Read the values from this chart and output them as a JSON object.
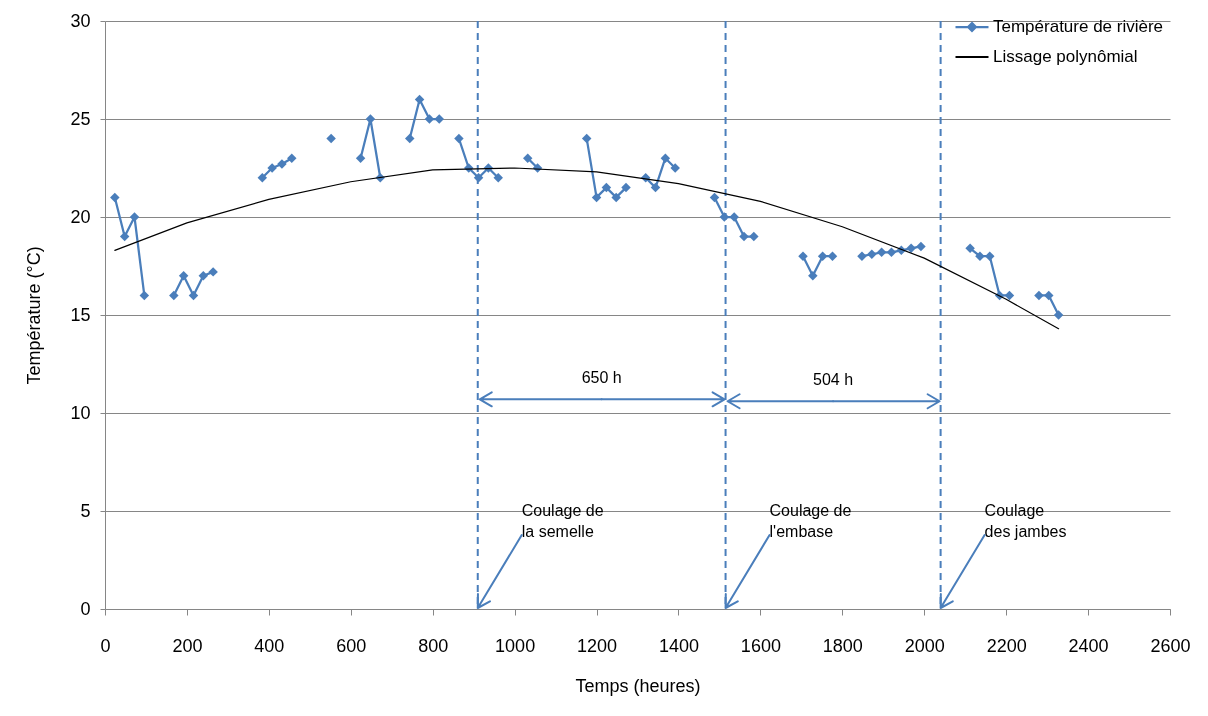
{
  "chart_data": {
    "type": "line",
    "xlabel": "Temps (heures)",
    "ylabel": "Température (°C)",
    "xlim": [
      0,
      2600
    ],
    "xticks": [
      0,
      200,
      400,
      600,
      800,
      1000,
      1200,
      1400,
      1600,
      1800,
      2000,
      2200,
      2400,
      2600
    ],
    "ylim": [
      0,
      30
    ],
    "yticks": [
      0,
      5,
      10,
      15,
      20,
      25,
      30
    ],
    "grid": "y",
    "legend": "top right",
    "series": [
      {
        "name": "Température de rivière",
        "color": "#4a7ebb",
        "marker": "diamond",
        "x": [
          24,
          48,
          72,
          96,
          120,
          168,
          192,
          216,
          240,
          264,
          288,
          384,
          408,
          432,
          456,
          480,
          552,
          576,
          624,
          648,
          672,
          696,
          744,
          768,
          792,
          816,
          840,
          864,
          888,
          912,
          936,
          960,
          984,
          1032,
          1056,
          1080,
          1176,
          1200,
          1224,
          1248,
          1272,
          1296,
          1320,
          1344,
          1368,
          1392,
          1416,
          1488,
          1512,
          1536,
          1560,
          1584,
          1608,
          1704,
          1728,
          1752,
          1776,
          1800,
          1848,
          1872,
          1896,
          1920,
          1944,
          1968,
          1992,
          2016,
          2112,
          2136,
          2160,
          2184,
          2208,
          2232,
          2280,
          2304,
          2328
        ],
        "values": [
          21,
          19,
          20,
          16,
          null,
          16,
          17,
          16,
          17,
          17.2,
          null,
          22,
          22.5,
          22.7,
          23,
          null,
          24,
          null,
          23,
          25,
          22,
          null,
          24,
          26,
          25,
          25,
          null,
          24,
          22.5,
          22,
          22.5,
          22,
          null,
          23,
          22.5,
          null,
          24,
          21,
          21.5,
          21,
          21.5,
          null,
          22,
          21.5,
          23,
          22.5,
          null,
          21,
          20,
          20,
          19,
          19,
          null,
          18,
          17,
          18,
          18,
          null,
          18,
          18.1,
          18.2,
          18.2,
          18.3,
          18.4,
          18.5,
          null,
          18.4,
          18,
          18,
          16,
          16,
          null,
          16,
          16,
          15
        ]
      },
      {
        "name": "Lissage polynômial",
        "color": "#000000",
        "marker": "none",
        "x": [
          24,
          200,
          400,
          600,
          800,
          1000,
          1200,
          1400,
          1600,
          1800,
          2000,
          2200,
          2328
        ],
        "values": [
          18.3,
          19.7,
          20.9,
          21.8,
          22.4,
          22.5,
          22.3,
          21.7,
          20.8,
          19.5,
          17.9,
          15.8,
          14.3
        ]
      }
    ],
    "ref_lines": [
      {
        "axis": "x",
        "value": 910,
        "label": "Coulage de la semelle",
        "color": "#4a7ebb",
        "line_style": "dashed"
      },
      {
        "axis": "x",
        "value": 1515,
        "label": "Coulage de l'embase",
        "color": "#4a7ebb",
        "line_style": "dashed"
      },
      {
        "axis": "x",
        "value": 2040,
        "label": "Coulage des jambes",
        "color": "#4a7ebb",
        "line_style": "dashed"
      }
    ],
    "annotations": [
      {
        "text": "650 h",
        "x": 910,
        "y": 10.7
      },
      {
        "text": "504 h",
        "x": 1515,
        "y": 10.6
      }
    ]
  }
}
